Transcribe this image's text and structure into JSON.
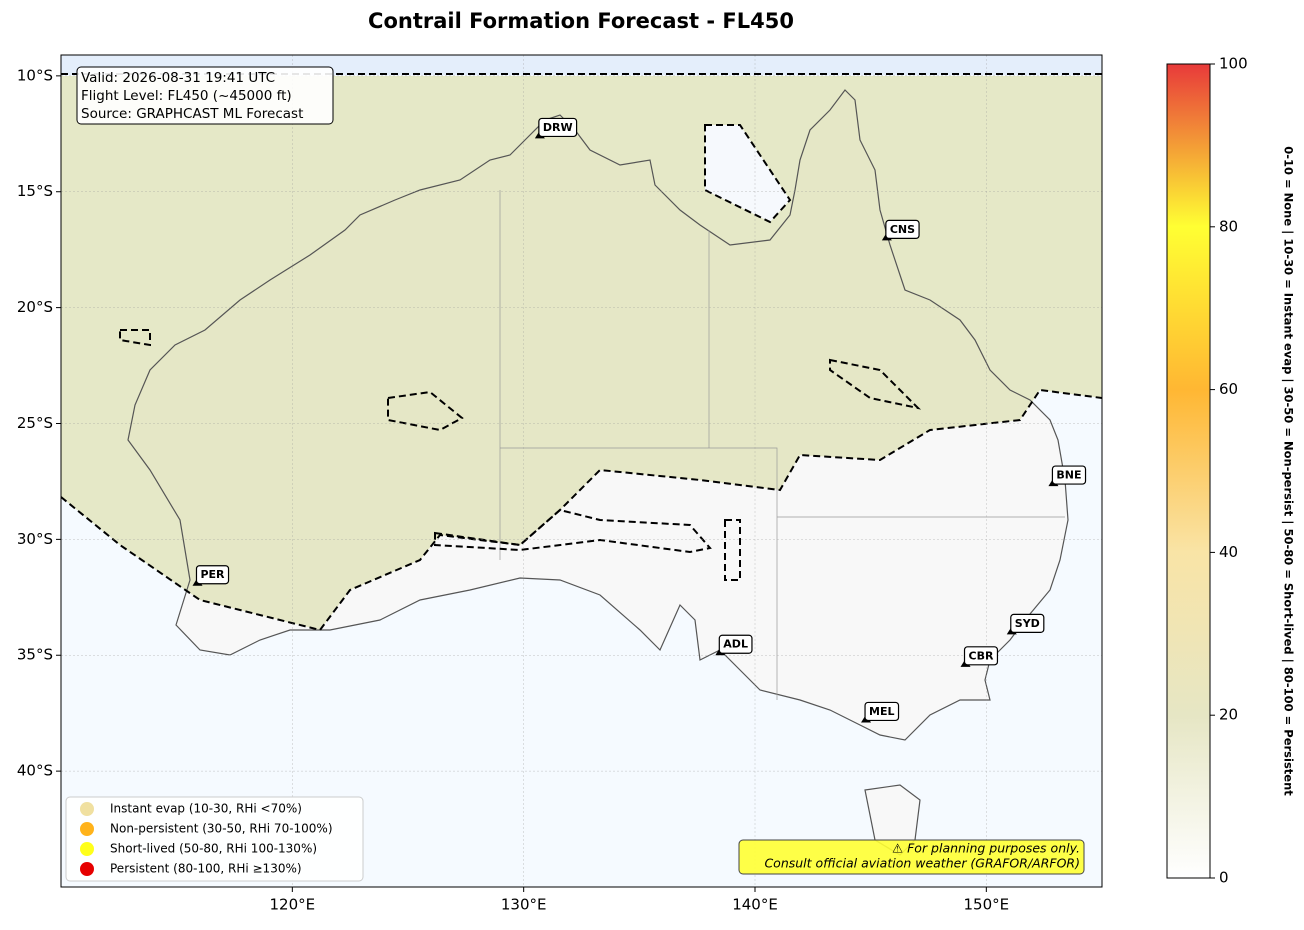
{
  "title": "Contrail Formation Forecast - FL450",
  "map": {
    "xlim": [
      110,
      155
    ],
    "ylim": [
      -45,
      -9.1
    ],
    "xticks": [
      {
        "value": 120,
        "label": "120°E"
      },
      {
        "value": 130,
        "label": "130°E"
      },
      {
        "value": 140,
        "label": "140°E"
      },
      {
        "value": 150,
        "label": "150°E"
      }
    ],
    "yticks": [
      {
        "value": -10,
        "label": "10°S"
      },
      {
        "value": -15,
        "label": "15°S"
      },
      {
        "value": -20,
        "label": "20°S"
      },
      {
        "value": -25,
        "label": "25°S"
      },
      {
        "value": -30,
        "label": "30°S"
      },
      {
        "value": -35,
        "label": "35°S"
      },
      {
        "value": -40,
        "label": "40°S"
      }
    ],
    "grid": true
  },
  "info": [
    "Valid: 2026-08-31 19:41 UTC",
    "Flight Level: FL450 (~45000 ft)",
    "Source: GRAPHCAST ML Forecast"
  ],
  "airports": [
    {
      "code": "DRW",
      "lon": 130.7,
      "lat": -12.7
    },
    {
      "code": "CNS",
      "lon": 145.7,
      "lat": -17.1
    },
    {
      "code": "BNE",
      "lon": 152.9,
      "lat": -27.7
    },
    {
      "code": "PER",
      "lon": 115.9,
      "lat": -32.0
    },
    {
      "code": "ADL",
      "lon": 138.5,
      "lat": -35.0
    },
    {
      "code": "SYD",
      "lon": 151.1,
      "lat": -34.1
    },
    {
      "code": "CBR",
      "lon": 149.1,
      "lat": -35.5
    },
    {
      "code": "MEL",
      "lon": 144.8,
      "lat": -37.9
    }
  ],
  "legend": [
    {
      "label": "Instant evap (10-30, RHi <70%)",
      "color": "#f0e0a0"
    },
    {
      "label": "Non-persistent (30-50, RHi 70-100%)",
      "color": "#ffb31a"
    },
    {
      "label": "Short-lived (50-80, RHi 100-130%)",
      "color": "#ffff1a"
    },
    {
      "label": "Persistent (80-100, RHi ≥130%)",
      "color": "#e60000"
    }
  ],
  "note": [
    "⚠ For planning purposes only.",
    "Consult official aviation weather (GRAFOR/ARFOR)"
  ],
  "colorbar": {
    "ylim": [
      0,
      100
    ],
    "yticks": [
      0,
      20,
      40,
      60,
      80,
      100
    ],
    "colors": [
      "#ffffff",
      "#e6e6c4",
      "#f9e4a6",
      "#ffb733",
      "#ffff33",
      "#e83a3a"
    ],
    "label": "0-10 = None  |  10-30 = Instant evap  |  30-50 = Non-persist  |  50-80 = Short-lived  |  80-100 = Persistent"
  }
}
